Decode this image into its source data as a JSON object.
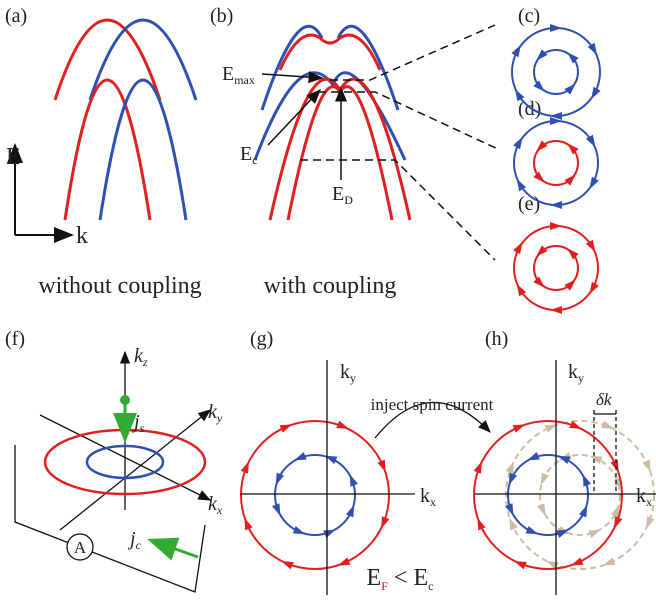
{
  "panels": {
    "a": "(a)",
    "b": "(b)",
    "c": "(c)",
    "d": "(d)",
    "e": "(e)",
    "f": "(f)",
    "g": "(g)",
    "h": "(h)"
  },
  "axis_labels": {
    "E": "E",
    "k": "k"
  },
  "captions": [
    "without coupling",
    "with coupling"
  ],
  "energy_labels": {
    "max": {
      "base": "E",
      "sub": "max"
    },
    "c": {
      "base": "E",
      "sub": "c"
    },
    "d": {
      "base": "E",
      "sub": "D"
    }
  },
  "f_labels": {
    "kz": {
      "base": "k",
      "sub": "z"
    },
    "ky": {
      "base": "k",
      "sub": "y"
    },
    "kx": {
      "base": "k",
      "sub": "x"
    },
    "js": {
      "base": "j",
      "sub": "s"
    },
    "jc": {
      "base": "j",
      "sub": "c"
    },
    "A": "A"
  },
  "g_labels": {
    "ky": {
      "base": "k",
      "sub": "y"
    },
    "kx": {
      "base": "k",
      "sub": "x"
    }
  },
  "inject": "inject spin current",
  "h_labels": {
    "ky": {
      "base": "k",
      "sub": "y"
    },
    "kx": {
      "base": "k",
      "sub": "x"
    },
    "delta": "δk"
  },
  "condition": {
    "left": {
      "base": "E",
      "sub": "F"
    },
    "op": "<",
    "right": {
      "base": "E",
      "sub": "c"
    }
  }
}
